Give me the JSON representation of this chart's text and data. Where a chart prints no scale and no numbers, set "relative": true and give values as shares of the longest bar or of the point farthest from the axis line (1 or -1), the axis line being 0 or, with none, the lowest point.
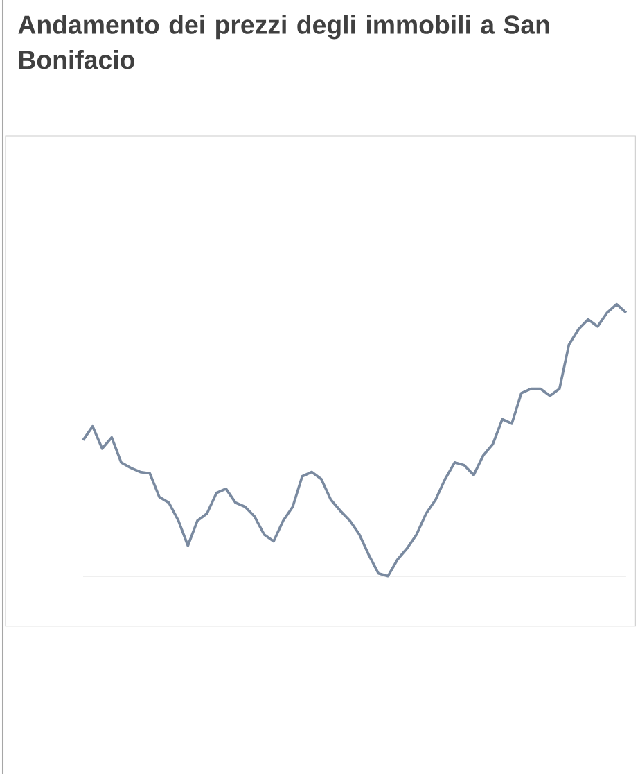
{
  "chart_data": {
    "type": "line",
    "title": "Andamento dei prezzi degli immobili a San Bonifacio",
    "relative": true,
    "categories": [
      null,
      null,
      null,
      null,
      null,
      null,
      null,
      null,
      null,
      null,
      null,
      null,
      null,
      null,
      null,
      null,
      null,
      null,
      null,
      null,
      null,
      null,
      null,
      null,
      null,
      null,
      null,
      null,
      null,
      null,
      null,
      null,
      null,
      null,
      null,
      null,
      null,
      null,
      null,
      null,
      null,
      null,
      null,
      null,
      null,
      null,
      null,
      null,
      null,
      null,
      null,
      null,
      null,
      null,
      null,
      null,
      null,
      null
    ],
    "series": [
      {
        "color": "#7a8aa0",
        "values": [
          0.5,
          0.551,
          0.469,
          0.51,
          0.418,
          0.398,
          0.383,
          0.378,
          0.291,
          0.27,
          0.204,
          0.112,
          0.204,
          0.23,
          0.306,
          0.321,
          0.27,
          0.255,
          0.219,
          0.153,
          0.128,
          0.204,
          0.255,
          0.367,
          0.383,
          0.357,
          0.281,
          0.24,
          0.204,
          0.153,
          0.077,
          0.01,
          0,
          0.061,
          0.102,
          0.153,
          0.23,
          0.281,
          0.357,
          0.418,
          0.408,
          0.372,
          0.444,
          0.485,
          0.577,
          0.561,
          0.673,
          0.689,
          0.689,
          0.663,
          0.689,
          0.852,
          0.908,
          0.944,
          0.918,
          0.969,
          1,
          0.969
        ]
      }
    ]
  }
}
